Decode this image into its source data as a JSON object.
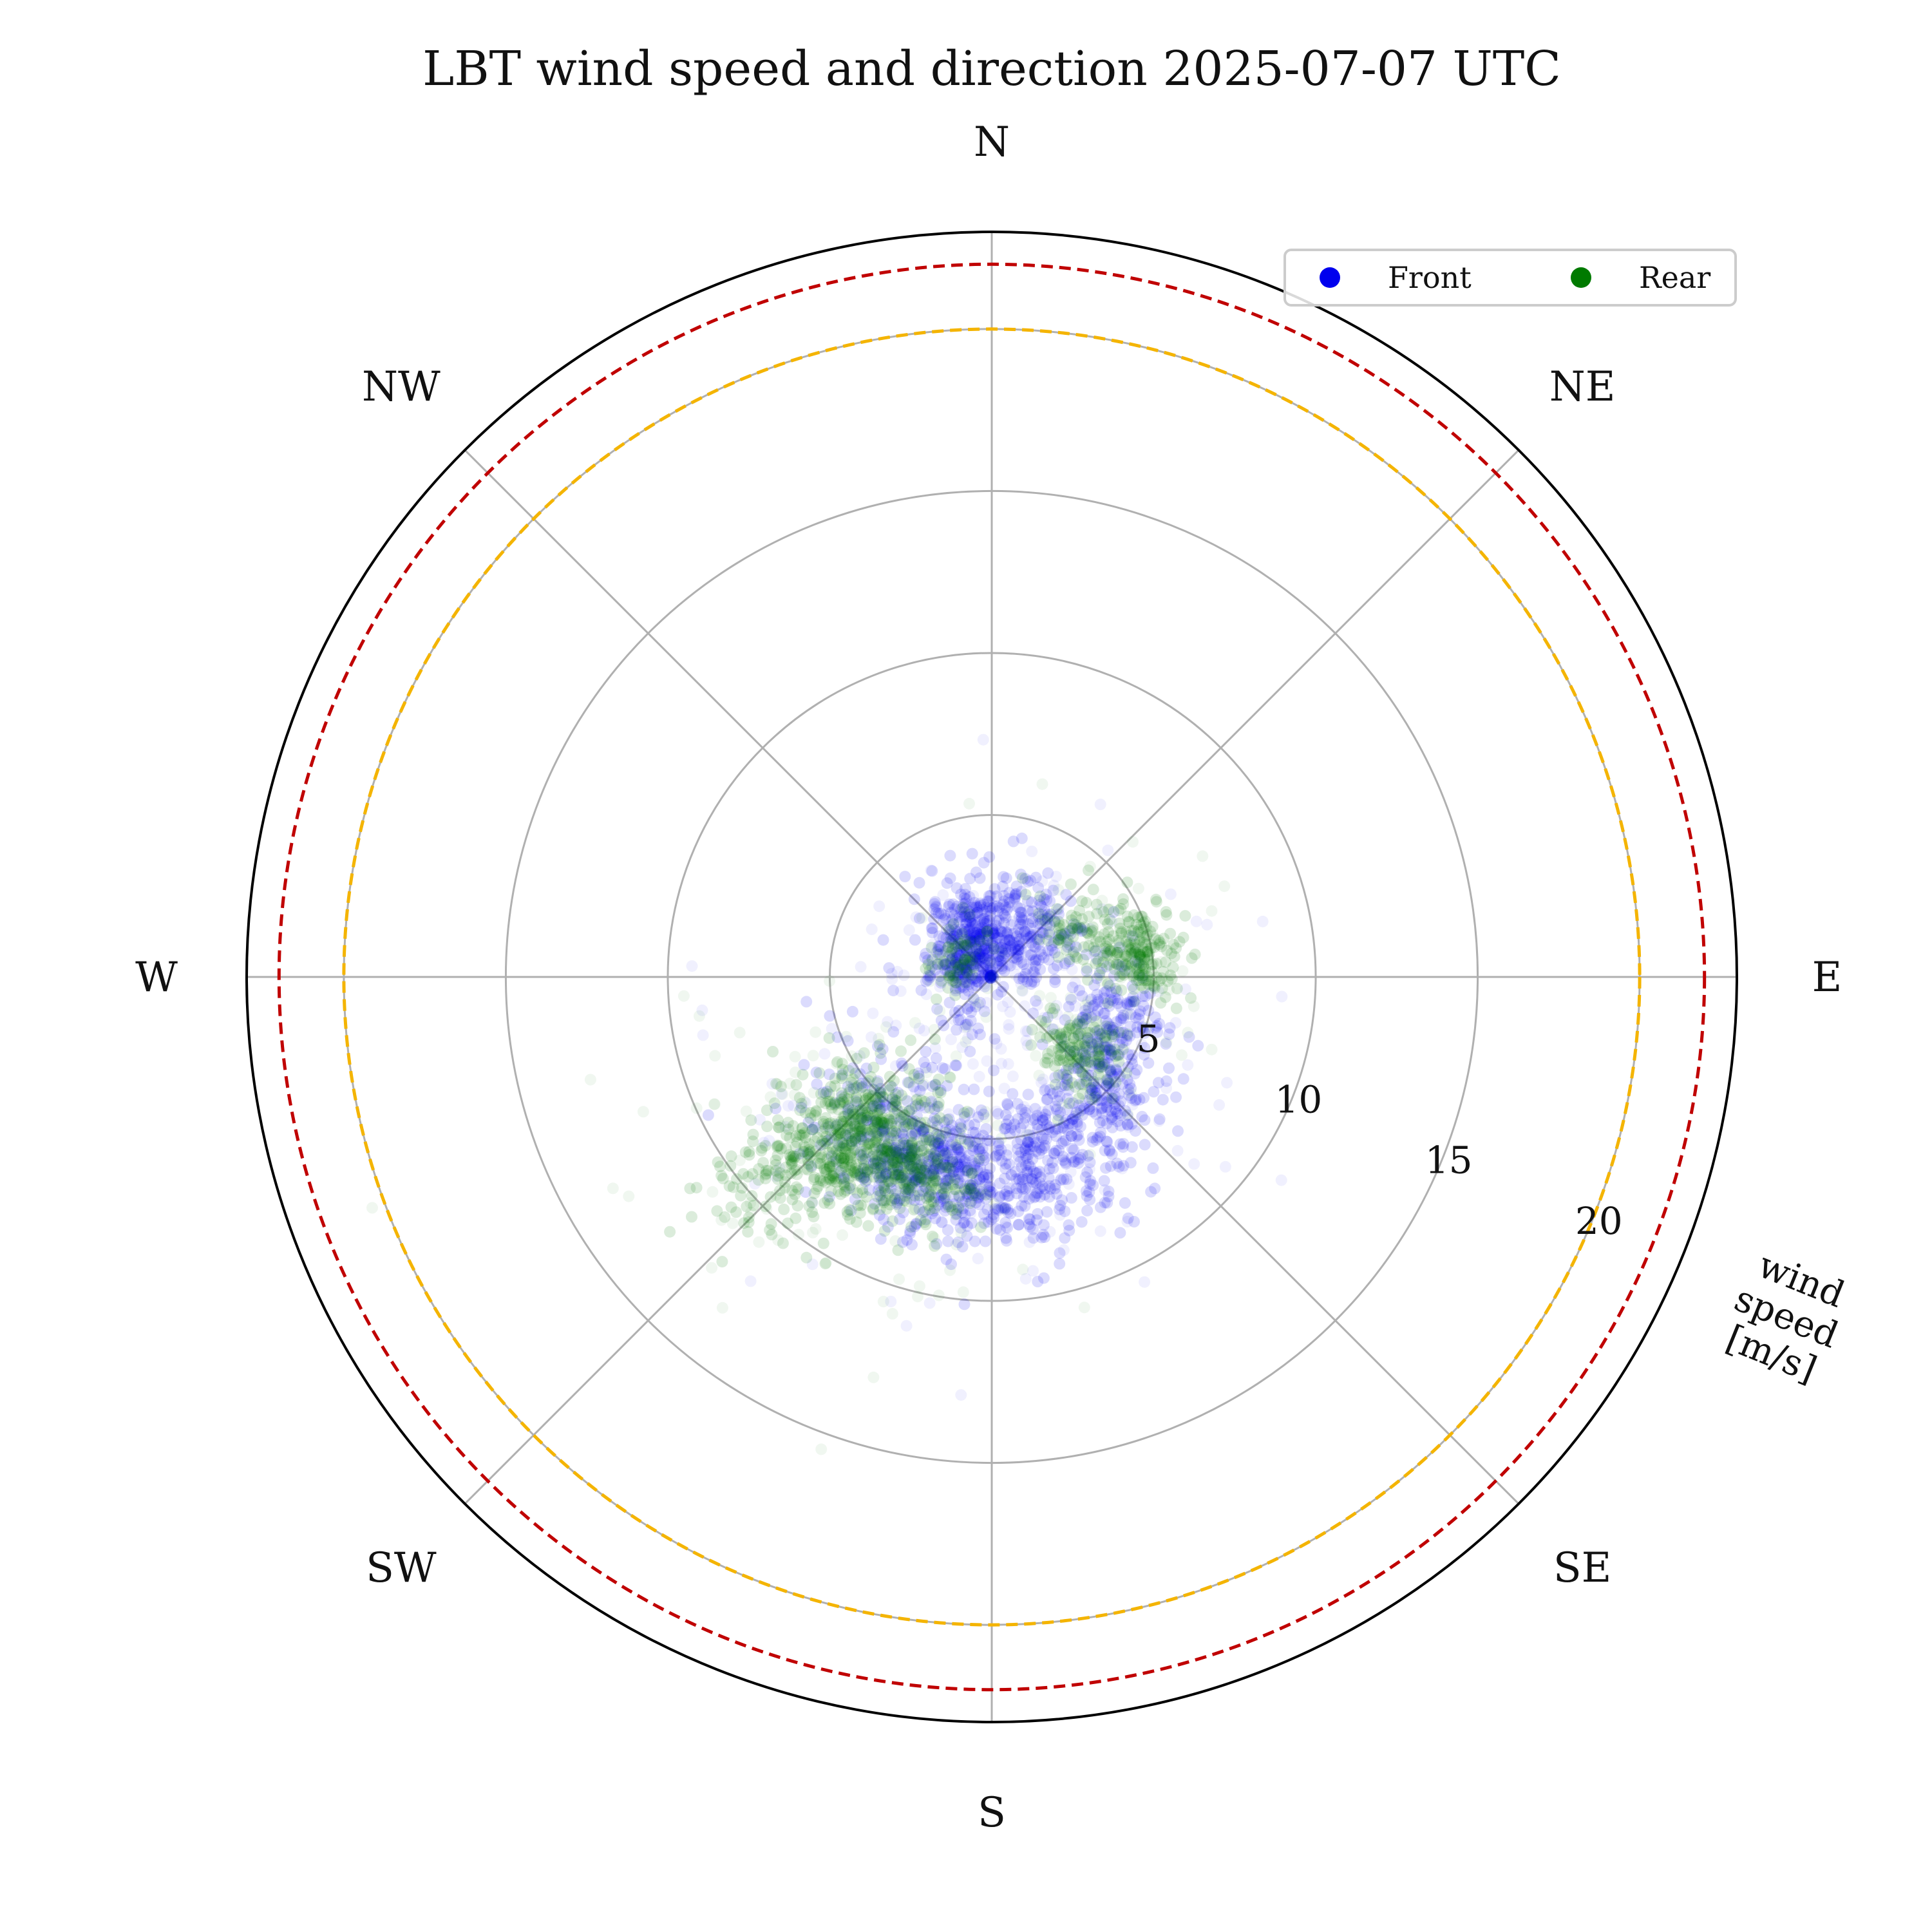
{
  "chart_data": {
    "type": "scatter",
    "projection": "polar",
    "title": "LBT wind speed and direction 2025-07-07 UTC",
    "radial_label_lines": [
      "wind",
      "speed",
      "[m/s]"
    ],
    "theta_zero": "N",
    "theta_direction": "clockwise",
    "direction_labels": [
      {
        "label": "N",
        "deg": 0
      },
      {
        "label": "NE",
        "deg": 45
      },
      {
        "label": "E",
        "deg": 90
      },
      {
        "label": "SE",
        "deg": 135
      },
      {
        "label": "S",
        "deg": 180
      },
      {
        "label": "SW",
        "deg": 225
      },
      {
        "label": "W",
        "deg": 270
      },
      {
        "label": "NW",
        "deg": 315
      }
    ],
    "rlim": [
      0,
      23
    ],
    "rticks": [
      5,
      10,
      15,
      20
    ],
    "rtick_labels": [
      "5",
      "10",
      "15",
      "20"
    ],
    "rtick_label_angle_deg": 112,
    "grid": true,
    "thresholds": [
      {
        "speed": 20,
        "color": "#f4b400",
        "style": "dashed"
      },
      {
        "speed": 22,
        "color": "#c00000",
        "style": "dashed"
      }
    ],
    "legend": {
      "placement": "top-right",
      "columns": 2
    },
    "series": [
      {
        "name": "Front",
        "color": "#0000ee",
        "marker": "circle",
        "clusters": [
          {
            "dir_deg": 180,
            "speed": 6.5,
            "dir_spread": 22,
            "speed_spread": 1.0,
            "count": 420
          },
          {
            "dir_deg": 195,
            "speed": 6.2,
            "dir_spread": 12,
            "speed_spread": 0.9,
            "count": 200
          },
          {
            "dir_deg": 150,
            "speed": 5.0,
            "dir_spread": 20,
            "speed_spread": 0.8,
            "count": 260
          },
          {
            "dir_deg": 115,
            "speed": 4.2,
            "dir_spread": 15,
            "speed_spread": 0.7,
            "count": 200
          },
          {
            "dir_deg": 20,
            "speed": 2.0,
            "dir_spread": 40,
            "speed_spread": 0.9,
            "count": 380
          },
          {
            "dir_deg": 330,
            "speed": 1.5,
            "dir_spread": 30,
            "speed_spread": 0.6,
            "count": 180
          },
          {
            "dir_deg": 270,
            "speed": 1.0,
            "dir_spread": 45,
            "speed_spread": 0.5,
            "count": 120
          },
          {
            "dir_deg": 215,
            "speed": 5.5,
            "dir_spread": 15,
            "speed_spread": 1.2,
            "count": 180
          }
        ]
      },
      {
        "name": "Rear",
        "color": "#007a00",
        "marker": "circle",
        "clusters": [
          {
            "dir_deg": 215,
            "speed": 6.5,
            "dir_spread": 10,
            "speed_spread": 1.1,
            "count": 420
          },
          {
            "dir_deg": 225,
            "speed": 7.5,
            "dir_spread": 7,
            "speed_spread": 1.5,
            "count": 200
          },
          {
            "dir_deg": 228,
            "speed": 9.0,
            "dir_spread": 6,
            "speed_spread": 1.4,
            "count": 90
          },
          {
            "dir_deg": 200,
            "speed": 6.3,
            "dir_spread": 8,
            "speed_spread": 0.9,
            "count": 160
          },
          {
            "dir_deg": 80,
            "speed": 4.6,
            "dir_spread": 9,
            "speed_spread": 0.6,
            "count": 220
          },
          {
            "dir_deg": 130,
            "speed": 3.6,
            "dir_spread": 9,
            "speed_spread": 0.7,
            "count": 160
          },
          {
            "dir_deg": 60,
            "speed": 3.0,
            "dir_spread": 15,
            "speed_spread": 0.6,
            "count": 80
          },
          {
            "dir_deg": 300,
            "speed": 1.4,
            "dir_spread": 25,
            "speed_spread": 0.4,
            "count": 70
          }
        ]
      }
    ]
  }
}
